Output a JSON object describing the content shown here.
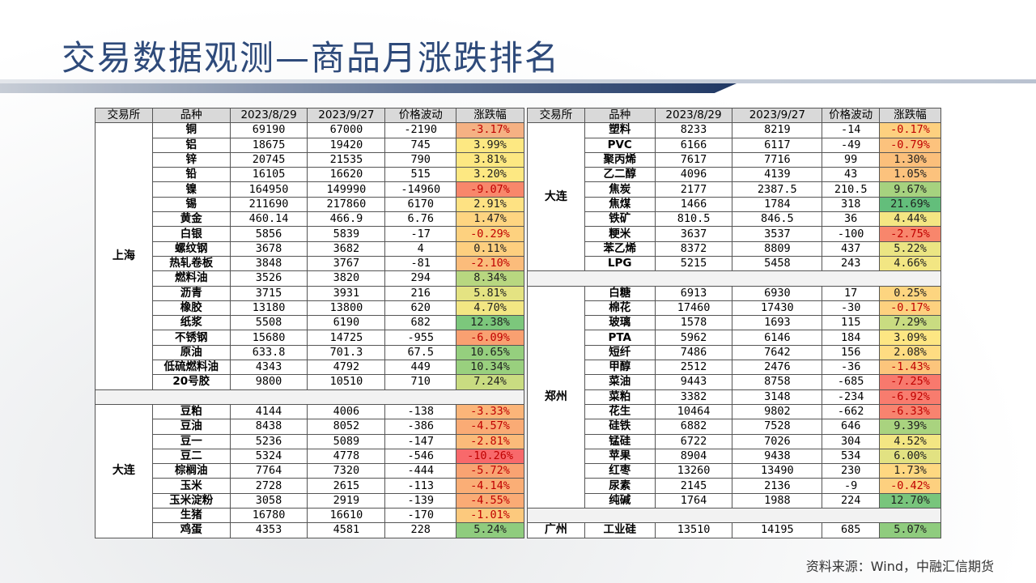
{
  "title": "交易数据观测—商品月涨跌排名",
  "footer": "资料来源：Wind，中融汇信期货",
  "headers": [
    "交易所",
    "品种",
    "2023/8/29",
    "2023/9/27",
    "价格波动",
    "涨跌幅"
  ],
  "left_groups": [
    {
      "exchange": "上海",
      "rows": [
        {
          "name": "铜",
          "p1": "69190",
          "p2": "67000",
          "chg": "-2190",
          "pct": "-3.17%",
          "color": "#f5b183"
        },
        {
          "name": "铝",
          "p1": "18675",
          "p2": "19420",
          "chg": "745",
          "pct": "3.99%",
          "color": "#fde882"
        },
        {
          "name": "锌",
          "p1": "20745",
          "p2": "21535",
          "chg": "790",
          "pct": "3.81%",
          "color": "#fde882"
        },
        {
          "name": "铅",
          "p1": "16105",
          "p2": "16620",
          "chg": "515",
          "pct": "3.20%",
          "color": "#fde882"
        },
        {
          "name": "镍",
          "p1": "164950",
          "p2": "149990",
          "chg": "-14960",
          "pct": "-9.07%",
          "color": "#f8876b"
        },
        {
          "name": "锡",
          "p1": "211690",
          "p2": "217860",
          "chg": "6170",
          "pct": "2.91%",
          "color": "#fee283"
        },
        {
          "name": "黄金",
          "p1": "460.14",
          "p2": "466.9",
          "chg": "6.76",
          "pct": "1.47%",
          "color": "#fed581"
        },
        {
          "name": "白银",
          "p1": "5856",
          "p2": "5839",
          "chg": "-17",
          "pct": "-0.29%",
          "color": "#fdd17f"
        },
        {
          "name": "螺纹钢",
          "p1": "3678",
          "p2": "3682",
          "chg": "4",
          "pct": "0.11%",
          "color": "#fdcf7f"
        },
        {
          "name": "热轧卷板",
          "p1": "3848",
          "p2": "3767",
          "chg": "-81",
          "pct": "-2.10%",
          "color": "#fbbc7b"
        },
        {
          "name": "燃料油",
          "p1": "3526",
          "p2": "3820",
          "chg": "294",
          "pct": "8.34%",
          "color": "#b8d780"
        },
        {
          "name": "沥青",
          "p1": "3715",
          "p2": "3931",
          "chg": "216",
          "pct": "5.81%",
          "color": "#e4e382"
        },
        {
          "name": "橡胶",
          "p1": "13180",
          "p2": "13800",
          "chg": "620",
          "pct": "4.70%",
          "color": "#f2e683"
        },
        {
          "name": "纸浆",
          "p1": "5508",
          "p2": "6190",
          "chg": "682",
          "pct": "12.38%",
          "color": "#7cc77c"
        },
        {
          "name": "不锈钢",
          "p1": "15680",
          "p2": "14725",
          "chg": "-955",
          "pct": "-6.09%",
          "color": "#f9a071"
        },
        {
          "name": "原油",
          "p1": "633.8",
          "p2": "701.3",
          "chg": "67.5",
          "pct": "10.65%",
          "color": "#95cf7e"
        },
        {
          "name": "低硫燃料油",
          "p1": "4343",
          "p2": "4792",
          "chg": "449",
          "pct": "10.34%",
          "color": "#99d07e"
        },
        {
          "name": "20号胶",
          "p1": "9800",
          "p2": "10510",
          "chg": "710",
          "pct": "7.24%",
          "color": "#c9dc81"
        }
      ]
    },
    {
      "exchange": "大连",
      "rows": [
        {
          "name": "豆粕",
          "p1": "4144",
          "p2": "4006",
          "chg": "-138",
          "pct": "-3.33%",
          "color": "#fbb579"
        },
        {
          "name": "豆油",
          "p1": "8438",
          "p2": "8052",
          "chg": "-386",
          "pct": "-4.57%",
          "color": "#faab75"
        },
        {
          "name": "豆一",
          "p1": "5236",
          "p2": "5089",
          "chg": "-147",
          "pct": "-2.81%",
          "color": "#fbbb7a"
        },
        {
          "name": "豆二",
          "p1": "5324",
          "p2": "4778",
          "chg": "-546",
          "pct": "-10.26%",
          "color": "#f8696b"
        },
        {
          "name": "棕榈油",
          "p1": "7764",
          "p2": "7320",
          "chg": "-444",
          "pct": "-5.72%",
          "color": "#f9a372"
        },
        {
          "name": "玉米",
          "p1": "2728",
          "p2": "2615",
          "chg": "-113",
          "pct": "-4.14%",
          "color": "#faae76"
        },
        {
          "name": "玉米淀粉",
          "p1": "3058",
          "p2": "2919",
          "chg": "-139",
          "pct": "-4.55%",
          "color": "#faab75"
        },
        {
          "name": "生猪",
          "p1": "16780",
          "p2": "16610",
          "chg": "-170",
          "pct": "-1.01%",
          "color": "#fcc97d"
        },
        {
          "name": "鸡蛋",
          "p1": "4353",
          "p2": "4581",
          "chg": "228",
          "pct": "5.24%",
          "color": "#8fcc7e"
        }
      ]
    }
  ],
  "right_groups": [
    {
      "exchange": "大连",
      "rows": [
        {
          "name": "塑料",
          "p1": "8233",
          "p2": "8219",
          "chg": "-14",
          "pct": "-0.17%",
          "color": "#fdd07f"
        },
        {
          "name": "PVC",
          "p1": "6166",
          "p2": "6117",
          "chg": "-49",
          "pct": "-0.79%",
          "color": "#fcc27d"
        },
        {
          "name": "聚丙烯",
          "p1": "7617",
          "p2": "7716",
          "chg": "99",
          "pct": "1.30%",
          "color": "#fbbf7b"
        },
        {
          "name": "乙二醇",
          "p1": "4096",
          "p2": "4139",
          "chg": "43",
          "pct": "1.05%",
          "color": "#fcc27d"
        },
        {
          "name": "焦炭",
          "p1": "2177",
          "p2": "2387.5",
          "chg": "210.5",
          "pct": "9.67%",
          "color": "#a6d27f"
        },
        {
          "name": "焦煤",
          "p1": "1466",
          "p2": "1784",
          "chg": "318",
          "pct": "21.69%",
          "color": "#63be7b"
        },
        {
          "name": "铁矿",
          "p1": "810.5",
          "p2": "846.5",
          "chg": "36",
          "pct": "4.44%",
          "color": "#f4e683"
        },
        {
          "name": "粳米",
          "p1": "3637",
          "p2": "3537",
          "chg": "-100",
          "pct": "-2.75%",
          "color": "#f8866c"
        },
        {
          "name": "苯乙烯",
          "p1": "8372",
          "p2": "8809",
          "chg": "437",
          "pct": "5.22%",
          "color": "#ebe583"
        },
        {
          "name": "LPG",
          "p1": "5215",
          "p2": "5458",
          "chg": "243",
          "pct": "4.66%",
          "color": "#f2e683"
        }
      ]
    },
    {
      "exchange": "郑州",
      "rows": [
        {
          "name": "白糖",
          "p1": "6913",
          "p2": "6930",
          "chg": "17",
          "pct": "0.25%",
          "color": "#fdd580"
        },
        {
          "name": "棉花",
          "p1": "17460",
          "p2": "17430",
          "chg": "-30",
          "pct": "-0.17%",
          "color": "#fdd17f"
        },
        {
          "name": "玻璃",
          "p1": "1578",
          "p2": "1693",
          "chg": "115",
          "pct": "7.29%",
          "color": "#c9dc81"
        },
        {
          "name": "PTA",
          "p1": "5962",
          "p2": "6146",
          "chg": "184",
          "pct": "3.09%",
          "color": "#fde683"
        },
        {
          "name": "短纤",
          "p1": "7486",
          "p2": "7642",
          "chg": "156",
          "pct": "2.08%",
          "color": "#fedc82"
        },
        {
          "name": "甲醇",
          "p1": "2512",
          "p2": "2476",
          "chg": "-36",
          "pct": "-1.43%",
          "color": "#fcc57c"
        },
        {
          "name": "菜油",
          "p1": "9443",
          "p2": "8758",
          "chg": "-685",
          "pct": "-7.25%",
          "color": "#f8796d"
        },
        {
          "name": "菜粕",
          "p1": "3382",
          "p2": "3148",
          "chg": "-234",
          "pct": "-6.92%",
          "color": "#f87c6e"
        },
        {
          "name": "花生",
          "p1": "10464",
          "p2": "9802",
          "chg": "-662",
          "pct": "-6.33%",
          "color": "#f8836f"
        },
        {
          "name": "硅铁",
          "p1": "6882",
          "p2": "7528",
          "chg": "646",
          "pct": "9.39%",
          "color": "#a9d37f"
        },
        {
          "name": "锰硅",
          "p1": "6722",
          "p2": "7026",
          "chg": "304",
          "pct": "4.52%",
          "color": "#f3e683"
        },
        {
          "name": "苹果",
          "p1": "8904",
          "p2": "9438",
          "chg": "534",
          "pct": "6.00%",
          "color": "#e2e282"
        },
        {
          "name": "红枣",
          "p1": "13260",
          "p2": "13490",
          "chg": "230",
          "pct": "1.73%",
          "color": "#fed881"
        },
        {
          "name": "尿素",
          "p1": "2145",
          "p2": "2136",
          "chg": "-9",
          "pct": "-0.42%",
          "color": "#fdd07f"
        },
        {
          "name": "纯碱",
          "p1": "1764",
          "p2": "1988",
          "chg": "224",
          "pct": "12.70%",
          "color": "#78c57c"
        }
      ]
    },
    {
      "exchange": "广州",
      "rows": [
        {
          "name": "工业硅",
          "p1": "13510",
          "p2": "14195",
          "chg": "685",
          "pct": "5.07%",
          "color": "#8fcc7e"
        }
      ]
    }
  ]
}
